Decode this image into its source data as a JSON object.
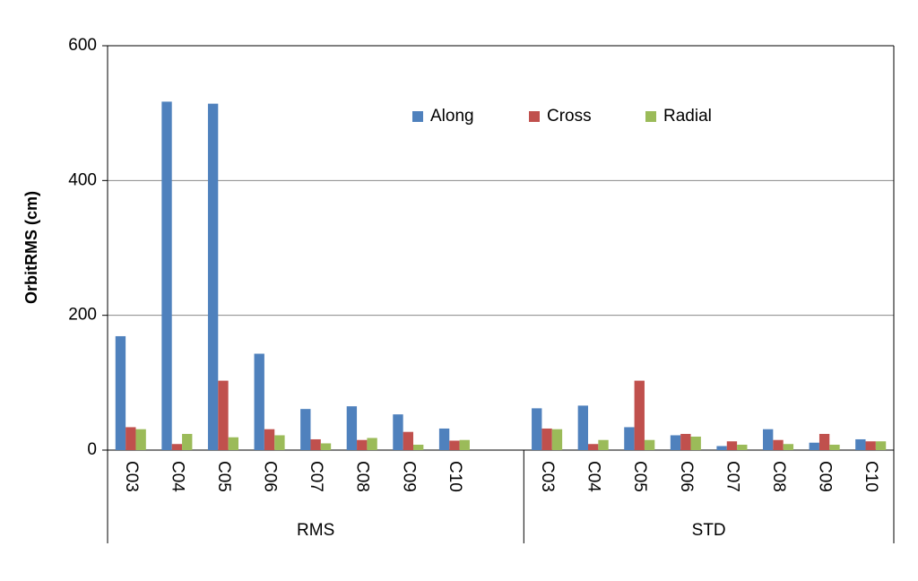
{
  "chart_data": {
    "type": "bar",
    "y_label": "OrbitRMS (cm)",
    "category_groups": [
      {
        "label": "RMS",
        "categories": [
          "C03",
          "C04",
          "C05",
          "C06",
          "C07",
          "C08",
          "C09",
          "C10",
          null
        ]
      },
      {
        "label": "STD",
        "categories": [
          "C03",
          "C04",
          "C05",
          "C06",
          "C07",
          "C08",
          "C09",
          "C10"
        ]
      }
    ],
    "series": [
      {
        "name": "Along",
        "color": "#4f81bd",
        "values": [
          169,
          517,
          514,
          143,
          61,
          65,
          53,
          32,
          null,
          62,
          66,
          34,
          22,
          6,
          31,
          11,
          16
        ]
      },
      {
        "name": "Cross",
        "color": "#c0504d",
        "values": [
          34,
          9,
          103,
          31,
          16,
          15,
          27,
          14,
          null,
          32,
          9,
          103,
          24,
          13,
          15,
          24,
          13
        ]
      },
      {
        "name": "Radial",
        "color": "#9bbb59",
        "values": [
          31,
          24,
          19,
          22,
          10,
          18,
          8,
          15,
          null,
          31,
          15,
          15,
          20,
          8,
          9,
          8,
          13
        ]
      }
    ],
    "ylim": [
      0,
      600
    ],
    "yticks": [
      0,
      200,
      400,
      600
    ],
    "grid": true,
    "legend": "top"
  }
}
